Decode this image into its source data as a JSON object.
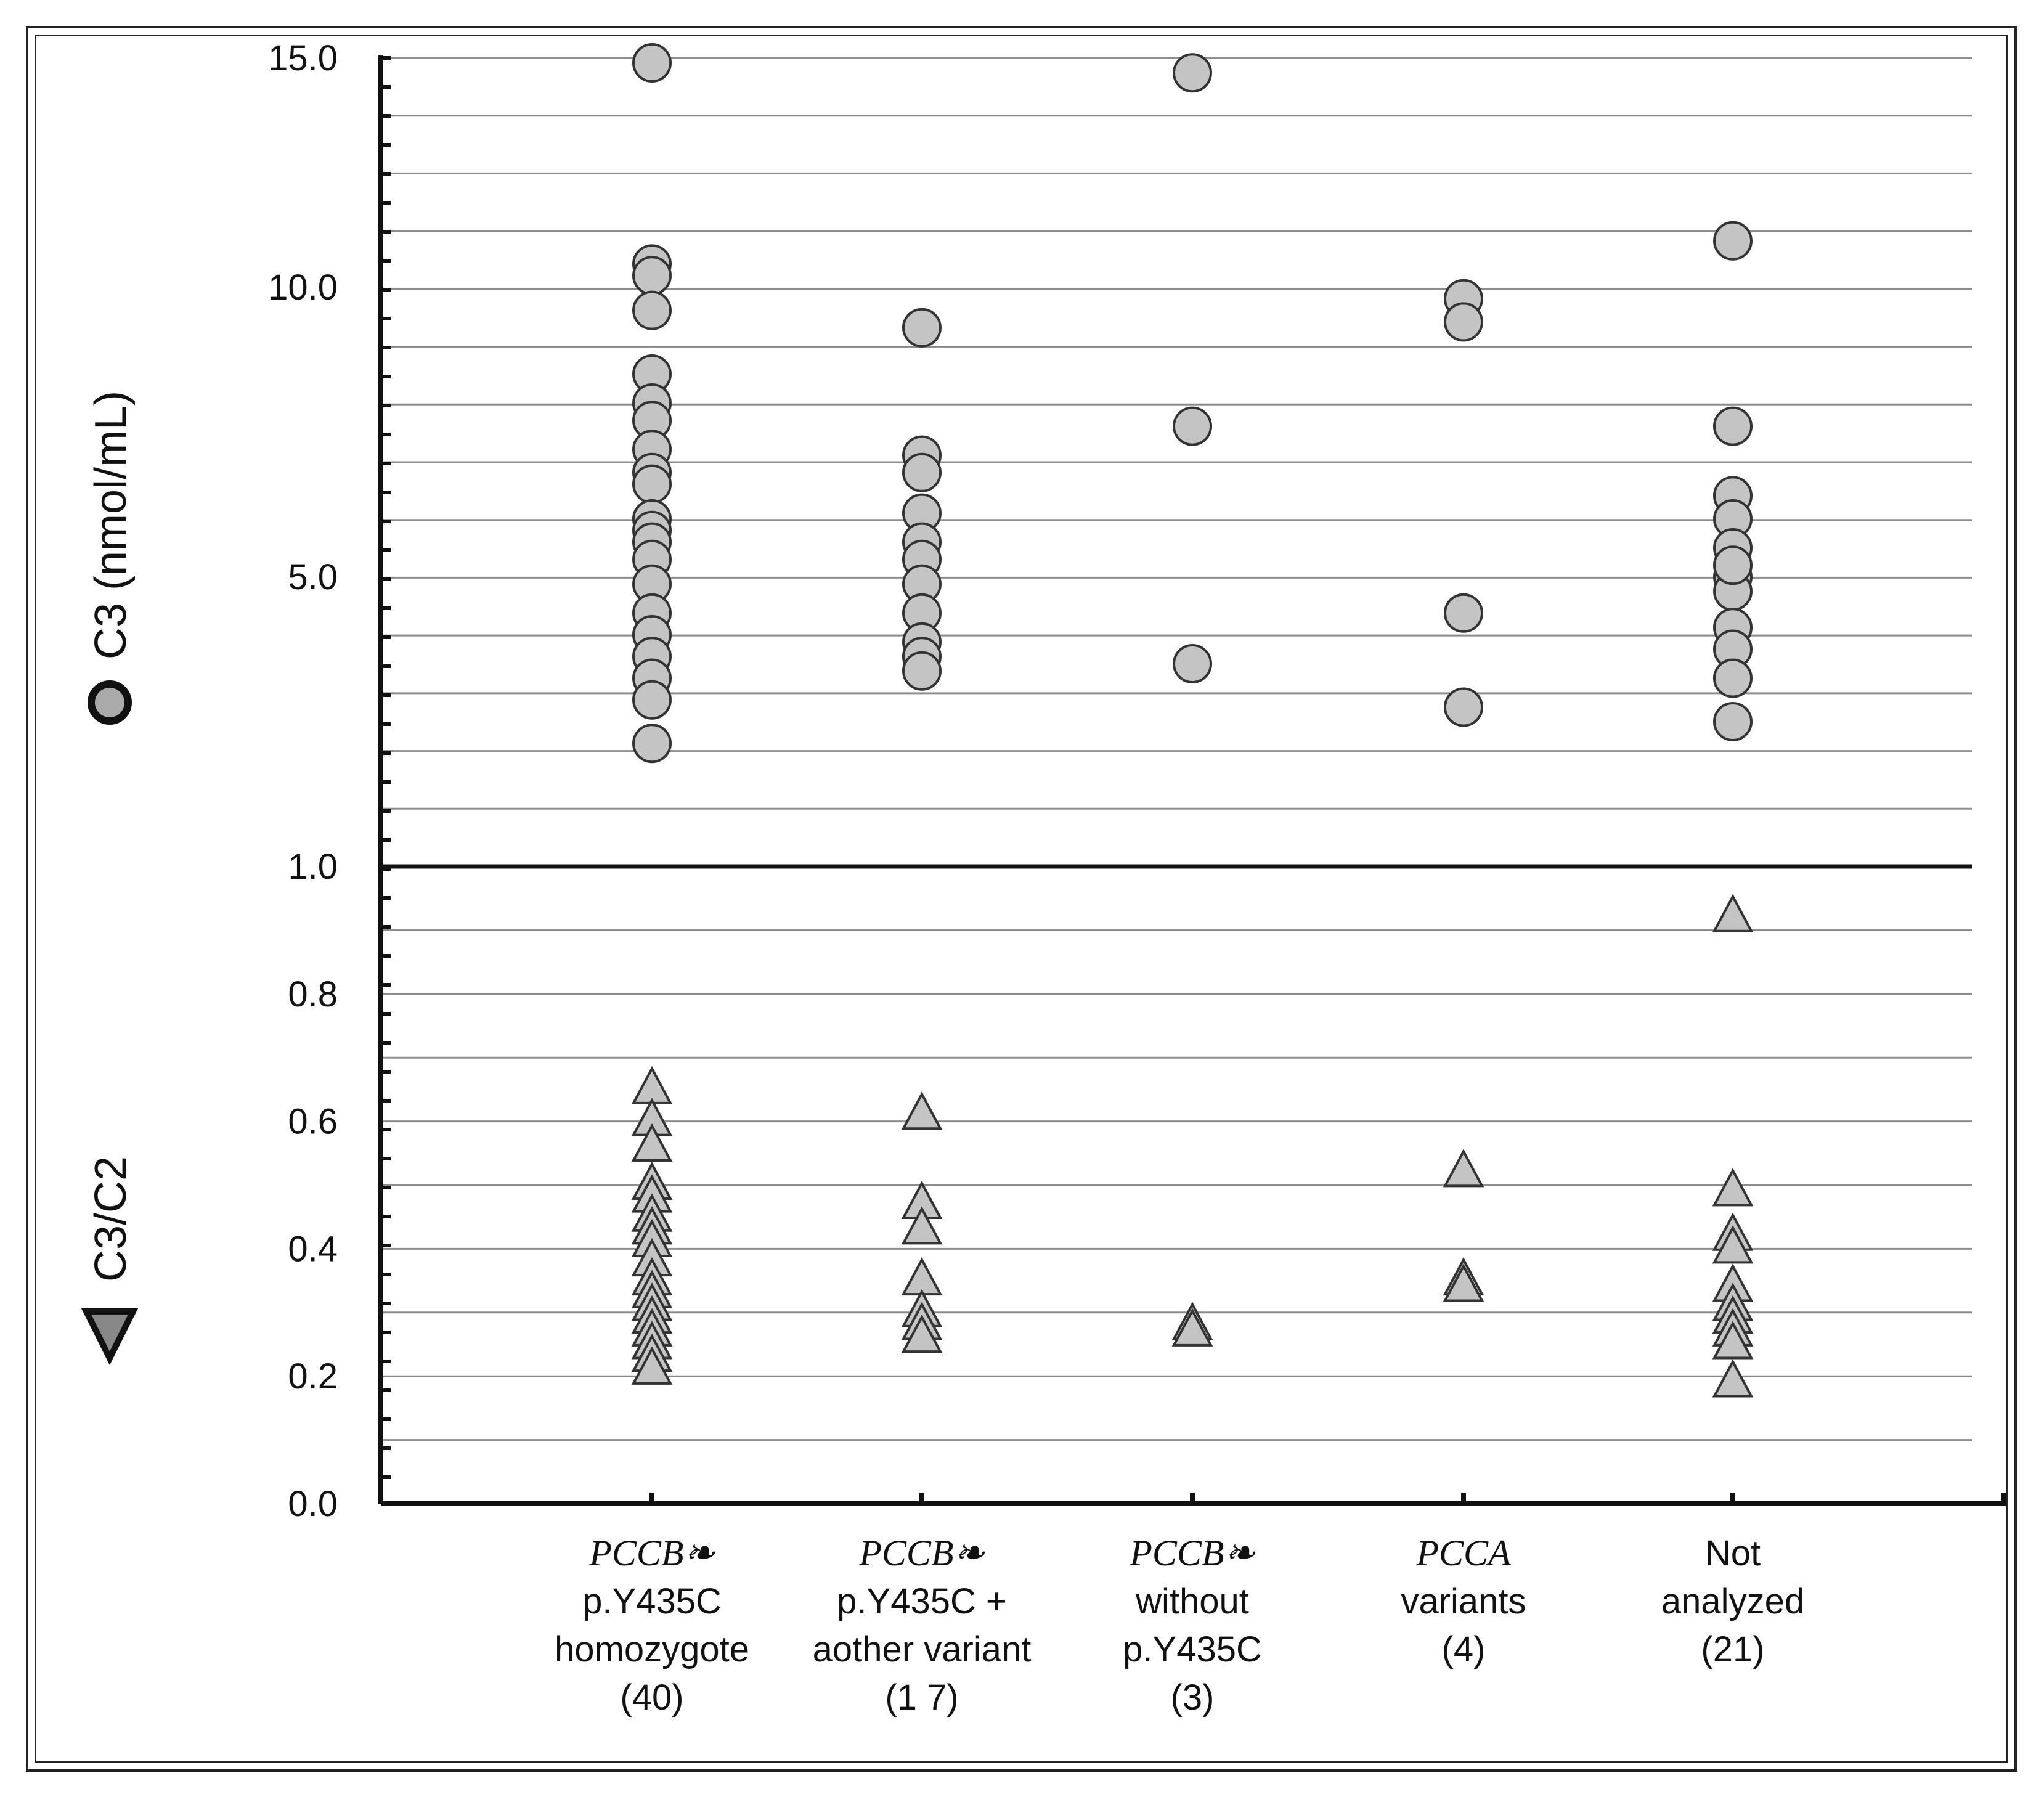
{
  "chart_data": {
    "type": "scatter",
    "upper_panel": {
      "ylabel": "C3 (nmol/mL)",
      "legend_marker": "circle",
      "yticks": [
        "1.0",
        "5.0",
        "10.0",
        "15.0"
      ],
      "ylim": [
        1.0,
        15.0
      ]
    },
    "lower_panel": {
      "ylabel": "C3/C2",
      "legend_marker": "triangle",
      "yticks": [
        "0.0",
        "0.2",
        "0.4",
        "0.6",
        "0.8",
        "1.0"
      ],
      "ylim": [
        0.0,
        1.0
      ]
    },
    "categories": [
      {
        "gene": "PCCB",
        "gene_symbol": "❧",
        "line1": "p.Y435C",
        "line2": "homozygote",
        "count": "(40)"
      },
      {
        "gene": "PCCB",
        "gene_symbol": "❧",
        "line1": "p.Y435C +",
        "line2": "aother variant",
        "count": "(1 7)"
      },
      {
        "gene": "PCCB",
        "gene_symbol": "❧",
        "line1": "without",
        "line2": "p.Y435C",
        "count": "(3)"
      },
      {
        "gene": "PCCA",
        "gene_symbol": "",
        "line1": "variants",
        "line2": "",
        "count": "(4)"
      },
      {
        "gene": "",
        "gene_symbol": "",
        "line1": "Not",
        "line2": "analyzed",
        "count": "(21)"
      }
    ],
    "series": [
      {
        "marker": "circle",
        "panel": "upper",
        "points": [
          [
            0,
            15.0
          ],
          [
            0,
            10.4
          ],
          [
            0,
            10.2
          ],
          [
            0,
            9.6
          ],
          [
            0,
            8.5
          ],
          [
            0,
            8.0
          ],
          [
            0,
            7.7
          ],
          [
            0,
            7.2
          ],
          [
            0,
            6.8
          ],
          [
            0,
            6.6
          ],
          [
            0,
            6.0
          ],
          [
            0,
            5.8
          ],
          [
            0,
            5.6
          ],
          [
            0,
            5.3
          ],
          [
            0,
            4.9
          ],
          [
            0,
            4.5
          ],
          [
            0,
            4.2
          ],
          [
            0,
            3.9
          ],
          [
            0,
            3.6
          ],
          [
            0,
            3.3
          ],
          [
            0,
            2.7
          ],
          [
            1,
            9.3
          ],
          [
            1,
            7.1
          ],
          [
            1,
            6.8
          ],
          [
            1,
            6.1
          ],
          [
            1,
            5.6
          ],
          [
            1,
            5.3
          ],
          [
            1,
            4.9
          ],
          [
            1,
            4.5
          ],
          [
            1,
            4.1
          ],
          [
            1,
            3.9
          ],
          [
            1,
            3.7
          ],
          [
            2,
            13.7
          ],
          [
            2,
            7.6
          ],
          [
            2,
            3.8
          ],
          [
            3,
            9.8
          ],
          [
            3,
            9.4
          ],
          [
            3,
            4.5
          ],
          [
            3,
            3.2
          ],
          [
            4,
            10.8
          ],
          [
            4,
            7.6
          ],
          [
            4,
            6.4
          ],
          [
            4,
            6.0
          ],
          [
            4,
            5.5
          ],
          [
            4,
            5.0
          ],
          [
            4,
            4.8
          ],
          [
            4,
            5.2
          ],
          [
            4,
            4.3
          ],
          [
            4,
            4.0
          ],
          [
            4,
            3.6
          ],
          [
            4,
            3.0
          ]
        ]
      },
      {
        "marker": "triangle",
        "panel": "lower",
        "points": [
          [
            0,
            0.65
          ],
          [
            0,
            0.6
          ],
          [
            0,
            0.56
          ],
          [
            0,
            0.5
          ],
          [
            0,
            0.48
          ],
          [
            0,
            0.45
          ],
          [
            0,
            0.43
          ],
          [
            0,
            0.41
          ],
          [
            0,
            0.38
          ],
          [
            0,
            0.35
          ],
          [
            0,
            0.33
          ],
          [
            0,
            0.31
          ],
          [
            0,
            0.29
          ],
          [
            0,
            0.27
          ],
          [
            0,
            0.25
          ],
          [
            0,
            0.23
          ],
          [
            0,
            0.21
          ],
          [
            1,
            0.61
          ],
          [
            1,
            0.47
          ],
          [
            1,
            0.43
          ],
          [
            1,
            0.35
          ],
          [
            1,
            0.3
          ],
          [
            1,
            0.28
          ],
          [
            1,
            0.26
          ],
          [
            2,
            0.28
          ],
          [
            2,
            0.27
          ],
          [
            3,
            0.52
          ],
          [
            3,
            0.35
          ],
          [
            3,
            0.34
          ],
          [
            4,
            0.92
          ],
          [
            4,
            0.49
          ],
          [
            4,
            0.42
          ],
          [
            4,
            0.4
          ],
          [
            4,
            0.34
          ],
          [
            4,
            0.31
          ],
          [
            4,
            0.29
          ],
          [
            4,
            0.27
          ],
          [
            4,
            0.25
          ],
          [
            4,
            0.19
          ]
        ]
      }
    ],
    "grid": true,
    "colors": {
      "marker_fill": "#c4c4c4",
      "marker_stroke": "#333333",
      "grid": "#8c8c8c",
      "axis": "#111111"
    }
  }
}
